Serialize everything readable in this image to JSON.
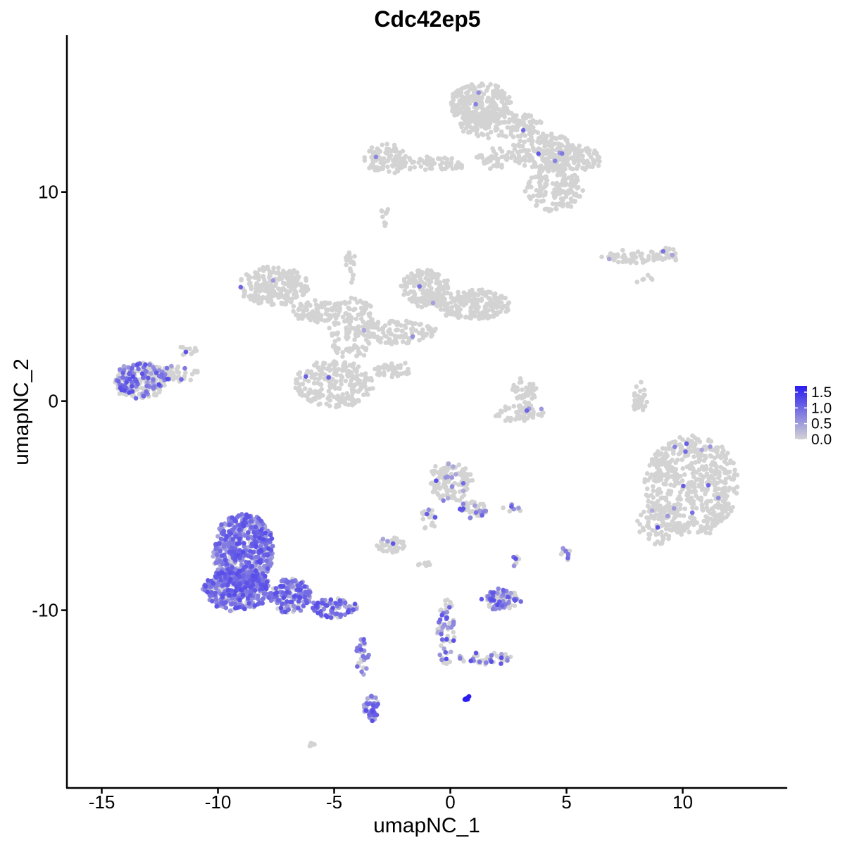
{
  "chart_data": {
    "type": "scatter",
    "title": "Cdc42ep5",
    "xlabel": "umapNC_1",
    "ylabel": "umapNC_2",
    "xlim": [
      -16.5,
      14.5
    ],
    "ylim": [
      -18.5,
      17.5
    ],
    "x_ticks": [
      -15,
      -10,
      -5,
      0,
      5,
      10
    ],
    "x_tick_labels": [
      "-15",
      "-10",
      "-5",
      "0",
      "5",
      "10"
    ],
    "y_ticks": [
      -10,
      0,
      10
    ],
    "y_tick_labels": [
      "-10",
      "0",
      "10"
    ],
    "grid": false,
    "legend_position": "right",
    "color_scale": {
      "low": "#d3d3d3",
      "high": "#2a1cf0",
      "min": 0,
      "max": 1.7,
      "breaks": [
        0,
        0.5,
        1.0,
        1.5
      ],
      "break_labels": [
        "0.0",
        "0.5",
        "1.0",
        "1.5"
      ]
    },
    "clusters": [
      {
        "cx": 1.3,
        "cy": 14.2,
        "rx": 1.3,
        "ry": 1.0,
        "n": 260,
        "expr_frac": 0.01
      },
      {
        "cx": 2.2,
        "cy": 13.2,
        "rx": 1.8,
        "ry": 0.6,
        "n": 140,
        "expr_frac": 0.01
      },
      {
        "cx": 3.9,
        "cy": 12.0,
        "rx": 1.4,
        "ry": 0.9,
        "n": 160,
        "expr_frac": 0.01
      },
      {
        "cx": 5.2,
        "cy": 11.6,
        "rx": 1.3,
        "ry": 0.6,
        "n": 120,
        "expr_frac": 0.01
      },
      {
        "cx": 4.5,
        "cy": 10.1,
        "rx": 1.3,
        "ry": 1.0,
        "n": 150,
        "expr_frac": 0.01
      },
      {
        "cx": -2.8,
        "cy": 11.6,
        "rx": 0.9,
        "ry": 0.7,
        "n": 90,
        "expr_frac": 0.01
      },
      {
        "cx": -0.9,
        "cy": 11.3,
        "rx": 1.6,
        "ry": 0.35,
        "n": 70,
        "expr_frac": 0.0
      },
      {
        "cx": 1.8,
        "cy": 11.6,
        "rx": 0.7,
        "ry": 0.5,
        "n": 40,
        "expr_frac": 0.0
      },
      {
        "cx": -2.8,
        "cy": 8.8,
        "rx": 0.25,
        "ry": 0.4,
        "n": 10,
        "expr_frac": 0.0
      },
      {
        "cx": 8.0,
        "cy": 6.9,
        "rx": 1.5,
        "ry": 0.28,
        "n": 55,
        "expr_frac": 0.02
      },
      {
        "cx": 9.3,
        "cy": 7.0,
        "rx": 0.5,
        "ry": 0.35,
        "n": 22,
        "expr_frac": 0.05
      },
      {
        "cx": 8.4,
        "cy": 5.8,
        "rx": 0.3,
        "ry": 0.2,
        "n": 6,
        "expr_frac": 0.0
      },
      {
        "cx": -7.6,
        "cy": 5.5,
        "rx": 1.5,
        "ry": 0.9,
        "n": 220,
        "expr_frac": 0.005
      },
      {
        "cx": -5.8,
        "cy": 4.3,
        "rx": 1.1,
        "ry": 0.5,
        "n": 90,
        "expr_frac": 0.0
      },
      {
        "cx": -4.2,
        "cy": 3.5,
        "rx": 1.1,
        "ry": 1.5,
        "n": 160,
        "expr_frac": 0.0
      },
      {
        "cx": -1.1,
        "cy": 5.4,
        "rx": 1.0,
        "ry": 0.9,
        "n": 170,
        "expr_frac": 0.01
      },
      {
        "cx": 1.0,
        "cy": 4.6,
        "rx": 1.6,
        "ry": 0.7,
        "n": 200,
        "expr_frac": 0.0
      },
      {
        "cx": -2.2,
        "cy": 3.3,
        "rx": 1.6,
        "ry": 0.6,
        "n": 110,
        "expr_frac": 0.01
      },
      {
        "cx": -5.0,
        "cy": 0.8,
        "rx": 1.7,
        "ry": 1.1,
        "n": 240,
        "expr_frac": 0.01
      },
      {
        "cx": -4.3,
        "cy": 6.5,
        "rx": 0.22,
        "ry": 0.8,
        "n": 22,
        "expr_frac": 0.0
      },
      {
        "cx": -2.5,
        "cy": 1.5,
        "rx": 1.0,
        "ry": 0.3,
        "n": 40,
        "expr_frac": 0.0
      },
      {
        "cx": 3.2,
        "cy": 0.4,
        "rx": 0.5,
        "ry": 0.8,
        "n": 50,
        "expr_frac": 0.0
      },
      {
        "cx": 3.0,
        "cy": -0.6,
        "rx": 1.1,
        "ry": 0.4,
        "n": 60,
        "expr_frac": 0.04
      },
      {
        "cx": 8.2,
        "cy": 0.0,
        "rx": 0.3,
        "ry": 0.9,
        "n": 35,
        "expr_frac": 0.0
      },
      {
        "cx": -13.3,
        "cy": 1.0,
        "rx": 1.2,
        "ry": 0.85,
        "n": 220,
        "expr_frac": 0.38
      },
      {
        "cx": -11.8,
        "cy": 1.3,
        "rx": 1.0,
        "ry": 0.35,
        "n": 45,
        "expr_frac": 0.2
      },
      {
        "cx": -11.3,
        "cy": 2.4,
        "rx": 0.4,
        "ry": 0.3,
        "n": 12,
        "expr_frac": 0.1
      },
      {
        "cx": 10.4,
        "cy": -4.0,
        "rx": 2.0,
        "ry": 2.4,
        "n": 550,
        "expr_frac": 0.015
      },
      {
        "cx": 9.0,
        "cy": -5.8,
        "rx": 1.0,
        "ry": 1.0,
        "n": 90,
        "expr_frac": 0.03
      },
      {
        "cx": 0.0,
        "cy": -3.8,
        "rx": 0.9,
        "ry": 1.0,
        "n": 120,
        "expr_frac": 0.12
      },
      {
        "cx": 1.0,
        "cy": -5.2,
        "rx": 0.6,
        "ry": 0.4,
        "n": 45,
        "expr_frac": 0.25
      },
      {
        "cx": -1.0,
        "cy": -5.6,
        "rx": 0.35,
        "ry": 0.5,
        "n": 22,
        "expr_frac": 0.05
      },
      {
        "cx": -2.5,
        "cy": -6.9,
        "rx": 0.6,
        "ry": 0.35,
        "n": 45,
        "expr_frac": 0.1
      },
      {
        "cx": -8.9,
        "cy": -7.2,
        "rx": 1.3,
        "ry": 1.8,
        "n": 560,
        "expr_frac": 0.8
      },
      {
        "cx": -9.2,
        "cy": -9.0,
        "rx": 1.4,
        "ry": 1.0,
        "n": 380,
        "expr_frac": 0.85
      },
      {
        "cx": -6.9,
        "cy": -9.3,
        "rx": 0.9,
        "ry": 0.8,
        "n": 180,
        "expr_frac": 0.7
      },
      {
        "cx": -5.0,
        "cy": -9.9,
        "rx": 1.0,
        "ry": 0.45,
        "n": 90,
        "expr_frac": 0.75
      },
      {
        "cx": -3.8,
        "cy": -12.2,
        "rx": 0.25,
        "ry": 0.9,
        "n": 30,
        "expr_frac": 0.55
      },
      {
        "cx": -3.4,
        "cy": -14.7,
        "rx": 0.3,
        "ry": 0.6,
        "n": 40,
        "expr_frac": 0.7
      },
      {
        "cx": -0.2,
        "cy": -11.0,
        "rx": 0.4,
        "ry": 1.6,
        "n": 60,
        "expr_frac": 0.4
      },
      {
        "cx": 1.6,
        "cy": -12.3,
        "rx": 1.2,
        "ry": 0.25,
        "n": 45,
        "expr_frac": 0.35
      },
      {
        "cx": 2.2,
        "cy": -9.5,
        "rx": 0.8,
        "ry": 0.45,
        "n": 90,
        "expr_frac": 0.45
      },
      {
        "cx": 2.8,
        "cy": -7.7,
        "rx": 0.2,
        "ry": 0.3,
        "n": 8,
        "expr_frac": 0.4
      },
      {
        "cx": 5.0,
        "cy": -7.3,
        "rx": 0.3,
        "ry": 0.25,
        "n": 12,
        "expr_frac": 0.3
      },
      {
        "cx": 2.7,
        "cy": -5.1,
        "rx": 0.5,
        "ry": 0.12,
        "n": 10,
        "expr_frac": 0.3
      },
      {
        "cx": 0.7,
        "cy": -14.2,
        "rx": 0.15,
        "ry": 0.12,
        "n": 8,
        "expr_frac": 1.0,
        "high": true
      },
      {
        "cx": -6.0,
        "cy": -16.4,
        "rx": 0.2,
        "ry": 0.12,
        "n": 6,
        "expr_frac": 0.0
      },
      {
        "cx": -1.0,
        "cy": -7.8,
        "rx": 0.35,
        "ry": 0.15,
        "n": 8,
        "expr_frac": 0.1
      },
      {
        "cx": -14.0,
        "cy": 0.6,
        "rx": 0.5,
        "ry": 0.3,
        "n": 30,
        "expr_frac": 0.5
      }
    ]
  }
}
